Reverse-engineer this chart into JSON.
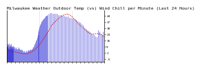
{
  "title": "Milwaukee Weather Outdoor Temp (vs) Wind Chill per Minute (Last 24 Hours)",
  "background_color": "#ffffff",
  "plot_bg_color": "#ffffff",
  "y_right_ticks": [
    "-5",
    "2",
    "9",
    "16",
    "23",
    "30",
    "37",
    "44"
  ],
  "y_right_values": [
    -5,
    2,
    9,
    16,
    23,
    30,
    37,
    44
  ],
  "y_min": -8,
  "y_max": 50,
  "x_min": 0,
  "x_max": 1440,
  "vlines": [
    480,
    960
  ],
  "temp_color": "#0000cc",
  "windchill_color": "#cc0000",
  "title_fontsize": 4.5,
  "tick_fontsize": 3.2,
  "temp_data_x": [
    0,
    5,
    10,
    15,
    20,
    25,
    30,
    35,
    40,
    45,
    50,
    55,
    60,
    65,
    70,
    75,
    80,
    85,
    90,
    95,
    100,
    110,
    120,
    130,
    140,
    150,
    160,
    170,
    180,
    190,
    200,
    210,
    220,
    230,
    240,
    250,
    260,
    270,
    280,
    290,
    300,
    310,
    320,
    330,
    340,
    350,
    360,
    370,
    380,
    390,
    400,
    410,
    420,
    430,
    440,
    450,
    460,
    470,
    480,
    490,
    500,
    510,
    520,
    530,
    540,
    550,
    560,
    570,
    580,
    590,
    600,
    620,
    640,
    660,
    680,
    700,
    720,
    740,
    760,
    780,
    800,
    820,
    840,
    860,
    880,
    900,
    920,
    940,
    960,
    980,
    1000,
    1020,
    1040,
    1060,
    1080,
    1100,
    1120,
    1140,
    1160,
    1180,
    1200,
    1220,
    1240,
    1260,
    1280,
    1300,
    1320,
    1340,
    1360,
    1380,
    1400,
    1420,
    1440
  ],
  "temp_data_y": [
    10,
    8,
    12,
    9,
    11,
    7,
    13,
    8,
    10,
    6,
    9,
    11,
    8,
    12,
    7,
    10,
    9,
    8,
    10,
    7,
    9,
    8,
    7,
    8,
    7,
    6,
    7,
    8,
    7,
    6,
    5,
    6,
    5,
    4,
    3,
    4,
    3,
    3,
    4,
    3,
    4,
    5,
    4,
    5,
    6,
    5,
    6,
    7,
    8,
    9,
    11,
    13,
    15,
    17,
    19,
    22,
    25,
    28,
    31,
    33,
    35,
    37,
    38,
    39,
    40,
    41,
    42,
    43,
    44,
    44,
    45,
    46,
    47,
    47,
    46,
    46,
    46,
    46,
    45,
    45,
    45,
    44,
    44,
    43,
    43,
    43,
    42,
    42,
    41,
    41,
    40,
    39,
    38,
    37,
    36,
    35,
    33,
    31,
    29,
    28,
    27,
    25,
    24,
    23,
    22,
    21,
    20,
    28,
    26,
    24,
    22,
    26,
    22
  ],
  "windchill_data_x": [
    0,
    60,
    120,
    180,
    240,
    300,
    360,
    420,
    480,
    540,
    600,
    660,
    720,
    780,
    840,
    900,
    960,
    1020,
    1080,
    1140,
    1200,
    1260,
    1320,
    1380,
    1440
  ],
  "windchill_data_y": [
    5,
    4,
    3,
    2,
    1,
    1,
    3,
    6,
    11,
    18,
    25,
    33,
    38,
    42,
    45,
    46,
    43,
    38,
    33,
    29,
    25,
    23,
    24,
    23,
    20
  ]
}
